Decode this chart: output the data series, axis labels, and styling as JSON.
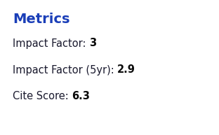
{
  "title": "Metrics",
  "title_color": "#1a3eb8",
  "title_fontsize": 14,
  "metrics": [
    {
      "label": "Impact Factor: ",
      "value": "3"
    },
    {
      "label": "Impact Factor (5yr): ",
      "value": "2.9"
    },
    {
      "label": "Cite Score: ",
      "value": "6.3"
    }
  ],
  "label_color": "#1a1a2e",
  "value_color": "#0a0a0a",
  "label_fontsize": 10.5,
  "value_fontsize": 10.5,
  "background_color": "#ffffff",
  "fig_width": 3.12,
  "fig_height": 1.93,
  "dpi": 100
}
